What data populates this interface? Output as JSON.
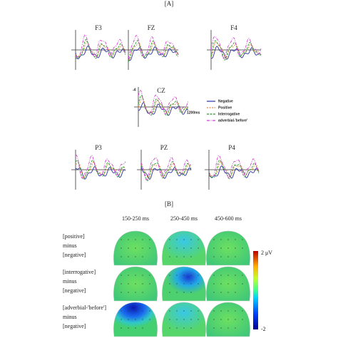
{
  "panel_a": {
    "label": "[A]",
    "channels": [
      "F3",
      "FZ",
      "F4",
      "CZ",
      "P3",
      "PZ",
      "P4"
    ],
    "scale": {
      "amplitude": "-4",
      "time": "1200ms"
    },
    "legend": [
      "Negative",
      "Positive",
      "Interrogative",
      "adverbial-'before'"
    ]
  },
  "panel_b": {
    "label": "[B]",
    "columns": [
      "150-250 ms",
      "250-450 ms",
      "450-600 ms"
    ],
    "rows": [
      {
        "lines": [
          "[positive]",
          "minus",
          "[negative]"
        ]
      },
      {
        "lines": [
          "[interrogative]",
          "minus",
          "[negative]"
        ]
      },
      {
        "lines": [
          "[adverbial-'before']",
          "minus",
          "[negative]"
        ]
      }
    ],
    "colorbar": {
      "max": "2 μV",
      "min": "-2"
    }
  }
}
